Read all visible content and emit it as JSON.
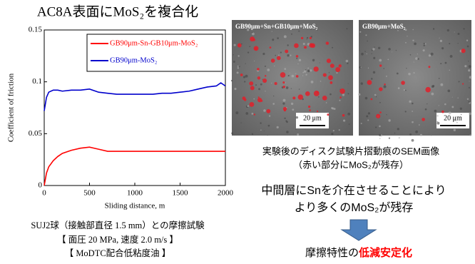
{
  "chart_data": {
    "type": "line",
    "title": "AC8A表面にMoS₂を複合化",
    "x_label": "Sliding distance, m",
    "y_label": "Coefficient of friction",
    "x": [
      0,
      25,
      50,
      100,
      150,
      200,
      300,
      400,
      500,
      600,
      700,
      800,
      900,
      1000,
      1100,
      1200,
      1300,
      1400,
      1500,
      1600,
      1700,
      1800,
      1900,
      1950,
      2000
    ],
    "series": [
      {
        "name": "GB90μm-Sn-GB10μm-MoS₂",
        "color": "#ff0000",
        "values": [
          0,
          0.012,
          0.018,
          0.024,
          0.028,
          0.031,
          0.034,
          0.036,
          0.037,
          0.035,
          0.033,
          0.033,
          0.033,
          0.033,
          0.033,
          0.033,
          0.033,
          0.033,
          0.033,
          0.033,
          0.033,
          0.033,
          0.033,
          0.033,
          0.033
        ]
      },
      {
        "name": "GB90μm-MoS₂",
        "color": "#0000cc",
        "values": [
          0.072,
          0.085,
          0.09,
          0.092,
          0.092,
          0.091,
          0.092,
          0.092,
          0.093,
          0.09,
          0.089,
          0.088,
          0.088,
          0.088,
          0.088,
          0.088,
          0.089,
          0.089,
          0.09,
          0.091,
          0.093,
          0.095,
          0.096,
          0.099,
          0.096
        ]
      }
    ],
    "xlim": [
      0,
      2000
    ],
    "xticks": [
      0,
      500,
      1000,
      1500,
      2000
    ],
    "ylim": [
      0,
      0.15
    ],
    "yticks": [
      0,
      0.05,
      0.1,
      0.15
    ],
    "legend": "upper right"
  },
  "test_conditions": [
    "SUJ2球（接触部直径 1.5 mm）との摩擦試験",
    "【 面圧 20 MPa, 速度 2.0 m/s 】",
    "【 MoDTC配合低粘度油 】"
  ],
  "images": [
    {
      "label": "GB90μm+Sn+GB10μm+MoS₂",
      "scale": "20 μm"
    },
    {
      "label": "GB90μm+MoS₂",
      "scale": "20 μm"
    }
  ],
  "image_caption": [
    "実験後のディスク試験片摺動痕のSEM画像",
    "（赤い部分にMoS₂が残存）"
  ],
  "finding": [
    "中間層にSnを介在させることにより",
    "より多くのMoS₂が残存"
  ],
  "result": {
    "prefix": "摩擦特性の",
    "highlight": "低減安定化"
  }
}
